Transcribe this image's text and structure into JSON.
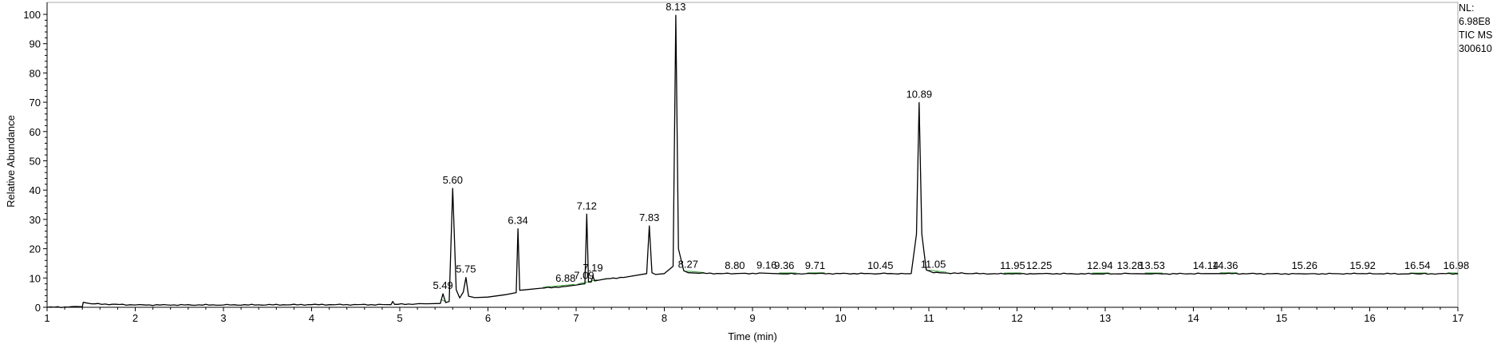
{
  "info": {
    "nl_label": "NL:",
    "nl_value": "6.98E8",
    "scan_filter": "TIC  MS",
    "file_name": "300610"
  },
  "chart_data": {
    "type": "line",
    "title": "",
    "xlabel": "Time (min)",
    "ylabel": "Relative Abundance",
    "xlim": [
      1,
      17
    ],
    "ylim": [
      0,
      100
    ],
    "x_ticks": [
      1,
      2,
      3,
      4,
      5,
      6,
      7,
      8,
      9,
      10,
      11,
      12,
      13,
      14,
      15,
      16,
      17
    ],
    "y_ticks": [
      0,
      10,
      20,
      30,
      40,
      50,
      60,
      70,
      80,
      90,
      100
    ],
    "grid": false,
    "series": [
      {
        "x": [
          1.0,
          1.4,
          1.41,
          1.5,
          2.0,
          3.0,
          4.0,
          4.9,
          4.92,
          4.94,
          5.3,
          5.46,
          5.49,
          5.52,
          5.56,
          5.6,
          5.64,
          5.68,
          5.72,
          5.75,
          5.78,
          5.85,
          6.0,
          6.2,
          6.32,
          6.34,
          6.36,
          6.4,
          6.6,
          6.88,
          7.0,
          7.09,
          7.1,
          7.12,
          7.14,
          7.17,
          7.19,
          7.21,
          7.3,
          7.6,
          7.8,
          7.83,
          7.86,
          7.9,
          8.0,
          8.1,
          8.13,
          8.16,
          8.22,
          8.27,
          8.4,
          8.8,
          9.16,
          9.36,
          9.71,
          10.45,
          10.8,
          10.86,
          10.89,
          10.92,
          10.97,
          11.05,
          11.5,
          11.95,
          12.25,
          12.94,
          13.28,
          13.53,
          14.14,
          14.36,
          15.26,
          15.92,
          16.54,
          16.98,
          17.0
        ],
        "y": [
          0.0,
          0.2,
          1.7,
          1.2,
          0.8,
          0.8,
          0.9,
          0.9,
          2.0,
          1.0,
          1.2,
          1.3,
          4.6,
          1.6,
          2.0,
          40.6,
          6.0,
          3.2,
          5.2,
          10.2,
          3.8,
          3.3,
          3.5,
          4.3,
          5.0,
          26.8,
          5.8,
          5.9,
          6.5,
          7.1,
          7.6,
          8.0,
          8.0,
          31.8,
          8.6,
          8.6,
          10.6,
          9.0,
          9.5,
          10.5,
          11.5,
          27.8,
          11.8,
          11.2,
          11.5,
          14.0,
          99.7,
          20.0,
          12.5,
          11.8,
          11.6,
          11.5,
          11.6,
          11.4,
          11.5,
          11.5,
          11.5,
          25.0,
          69.9,
          25.0,
          12.8,
          11.8,
          11.5,
          11.4,
          11.5,
          11.4,
          11.5,
          11.4,
          11.5,
          11.5,
          11.4,
          11.5,
          11.4,
          11.5,
          11.4
        ]
      }
    ],
    "peaks": [
      {
        "rt": 5.49,
        "label": "5.49",
        "y": 4.6
      },
      {
        "rt": 5.6,
        "label": "5.60",
        "y": 40.6
      },
      {
        "rt": 5.75,
        "label": "5.75",
        "y": 10.2
      },
      {
        "rt": 6.34,
        "label": "6.34",
        "y": 26.8
      },
      {
        "rt": 6.88,
        "label": "6.88",
        "y": 7.1
      },
      {
        "rt": 7.09,
        "label": "7.09",
        "y": 8.0
      },
      {
        "rt": 7.12,
        "label": "7.12",
        "y": 31.8
      },
      {
        "rt": 7.19,
        "label": "7.19",
        "y": 10.6
      },
      {
        "rt": 7.83,
        "label": "7.83",
        "y": 27.8
      },
      {
        "rt": 8.13,
        "label": "8.13",
        "y": 99.7
      },
      {
        "rt": 8.27,
        "label": "8.27",
        "y": 11.8
      },
      {
        "rt": 8.8,
        "label": "8.80",
        "y": 11.5
      },
      {
        "rt": 9.16,
        "label": "9.16",
        "y": 11.6
      },
      {
        "rt": 9.36,
        "label": "9.36",
        "y": 11.4
      },
      {
        "rt": 9.71,
        "label": "9.71",
        "y": 11.5
      },
      {
        "rt": 10.45,
        "label": "10.45",
        "y": 11.5
      },
      {
        "rt": 10.89,
        "label": "10.89",
        "y": 69.9
      },
      {
        "rt": 11.05,
        "label": "11.05",
        "y": 11.8
      },
      {
        "rt": 11.95,
        "label": "11.95",
        "y": 11.4
      },
      {
        "rt": 12.25,
        "label": "12.25",
        "y": 11.5
      },
      {
        "rt": 12.94,
        "label": "12.94",
        "y": 11.4
      },
      {
        "rt": 13.28,
        "label": "13.28",
        "y": 11.5
      },
      {
        "rt": 13.53,
        "label": "13.53",
        "y": 11.4
      },
      {
        "rt": 14.14,
        "label": "14.14",
        "y": 11.5
      },
      {
        "rt": 14.36,
        "label": "14.36",
        "y": 11.5
      },
      {
        "rt": 15.26,
        "label": "15.26",
        "y": 11.4
      },
      {
        "rt": 15.92,
        "label": "15.92",
        "y": 11.5
      },
      {
        "rt": 16.54,
        "label": "16.54",
        "y": 11.4
      },
      {
        "rt": 16.98,
        "label": "16.98",
        "y": 11.5
      }
    ],
    "integration_marks": [
      {
        "x": [
          5.47,
          5.52
        ]
      },
      {
        "x": [
          6.62,
          6.98
        ]
      },
      {
        "x": [
          7.02,
          7.16
        ]
      },
      {
        "x": [
          7.16,
          7.24
        ]
      },
      {
        "x": [
          8.25,
          8.45
        ]
      },
      {
        "x": [
          9.3,
          9.5
        ]
      },
      {
        "x": [
          9.62,
          9.82
        ]
      },
      {
        "x": [
          11.0,
          11.2
        ]
      },
      {
        "x": [
          11.85,
          12.05
        ]
      },
      {
        "x": [
          12.85,
          13.05
        ]
      },
      {
        "x": [
          13.45,
          13.65
        ]
      },
      {
        "x": [
          14.3,
          14.5
        ]
      },
      {
        "x": [
          16.45,
          16.65
        ]
      },
      {
        "x": [
          16.88,
          17.0
        ]
      }
    ],
    "colors": {
      "trace": "#000000",
      "axis": "#000000",
      "integration": "#2e9e2e",
      "frame": "#a8a8a8"
    }
  }
}
